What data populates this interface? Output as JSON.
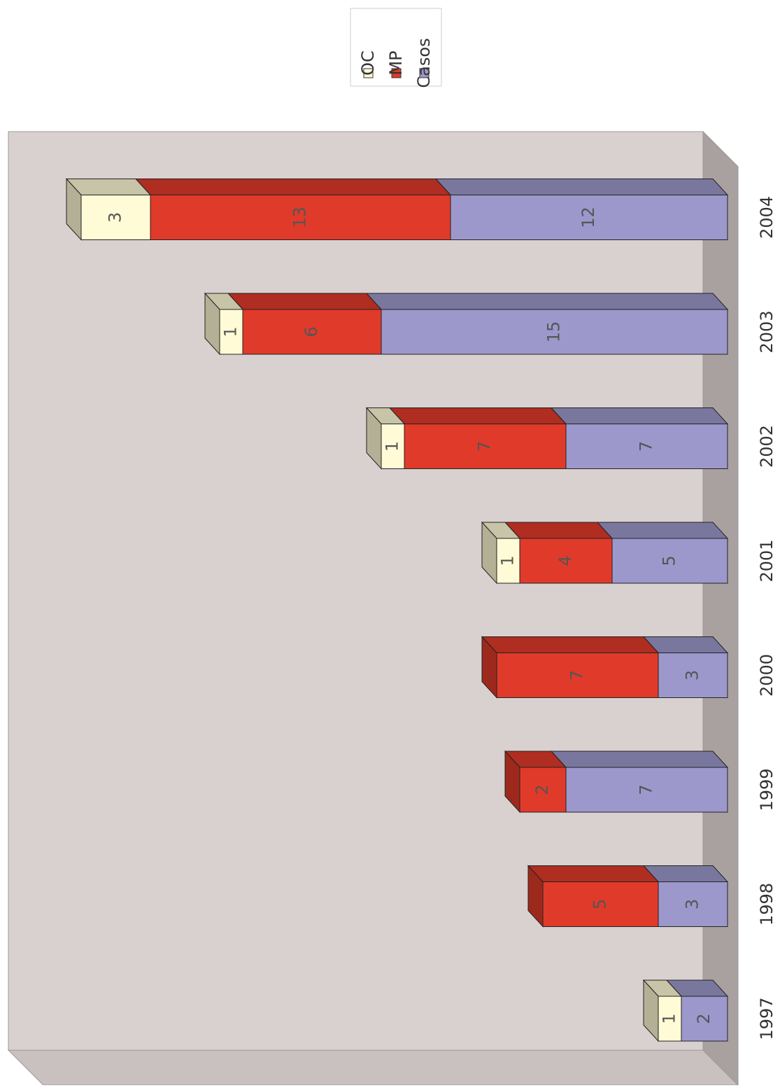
{
  "chart_data": {
    "type": "bar3d_stacked",
    "categories": [
      "1997",
      "1998",
      "1999",
      "2000",
      "2001",
      "2002",
      "2003",
      "2004"
    ],
    "series": [
      {
        "name": "OC",
        "color": "#fffbd6",
        "values": [
          1,
          null,
          null,
          null,
          1,
          1,
          1,
          3
        ]
      },
      {
        "name": "MP",
        "color": "#e03a2a",
        "values": [
          null,
          5,
          2,
          7,
          4,
          7,
          6,
          13
        ]
      },
      {
        "name": "Casos",
        "color": "#9c98cc",
        "values": [
          2,
          3,
          7,
          3,
          5,
          7,
          15,
          12
        ]
      }
    ]
  }
}
